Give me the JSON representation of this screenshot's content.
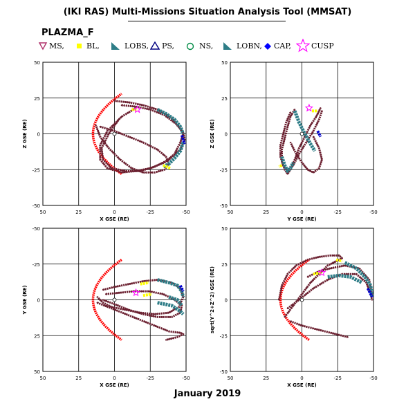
{
  "header": {
    "title": "(IKI RAS) Multi-Missions Situation Analysis Tool (MMSAT)",
    "mission": "PLAZMA_F",
    "date": "January 2019"
  },
  "legend": [
    {
      "symbol": "triangle-down",
      "label": "MS,",
      "color": "#b0306a"
    },
    {
      "symbol": "square",
      "label": "BL,",
      "color": "#ffff00"
    },
    {
      "symbol": "wedge",
      "label": "LOBS,",
      "color": "#2e7d87"
    },
    {
      "symbol": "triangle-up",
      "label": "PS,",
      "color": "#000080"
    },
    {
      "symbol": "circle",
      "label": "NS,",
      "color": "#008b45"
    },
    {
      "symbol": "wedge",
      "label": "LOBN,",
      "color": "#2e7d87"
    },
    {
      "symbol": "square",
      "label": "CAP,",
      "color": "#0000ff"
    },
    {
      "symbol": "star",
      "label": "CUSP",
      "color": "#ff00ff"
    }
  ],
  "colors": {
    "orbit": "#6b2030",
    "lobe": "#2e7d87",
    "boundary_layer": "#ffff00",
    "cap": "#0000cc",
    "bow_shock": "#ff0000",
    "cusp": "#ff00ff"
  },
  "chart_data": [
    {
      "type": "scatter",
      "xlabel": "X GSE (RE)",
      "ylabel": "Z GSE (RE)",
      "xlim": [
        50,
        -50
      ],
      "ylim": [
        -50,
        50
      ],
      "xticks": [
        "50",
        "25",
        "0",
        "-25",
        "-50"
      ],
      "yticks": [
        "-50",
        "-25",
        "0",
        "25",
        "50"
      ],
      "grid": true,
      "bow_shock": {
        "nose_x": 15,
        "extent": 28,
        "flare": 5
      },
      "orbits": [
        {
          "x": [
            0,
            -10,
            -20,
            -30,
            -40,
            -45,
            -48,
            -46,
            -42,
            -35,
            -25,
            -15,
            -5,
            5,
            10,
            10,
            5,
            -5,
            -15
          ],
          "y": [
            23,
            22,
            20,
            17,
            11,
            5,
            0,
            -6,
            -14,
            -20,
            -24,
            -26,
            -27,
            -24,
            -18,
            -8,
            2,
            12,
            18
          ]
        },
        {
          "x": [
            -5,
            -15,
            -25,
            -35,
            -43,
            -48,
            -49,
            -46,
            -38,
            -28,
            -18,
            -8,
            2,
            8,
            9,
            4,
            -3
          ],
          "y": [
            20,
            19,
            17,
            13,
            7,
            1,
            -4,
            -11,
            -18,
            -23,
            -26,
            -26,
            -24,
            -18,
            -10,
            0,
            10
          ]
        },
        {
          "x": [
            10,
            0,
            -10,
            -20,
            -30,
            -36,
            -38,
            -35,
            -28,
            -20,
            -12,
            -4,
            4,
            10,
            13
          ],
          "y": [
            5,
            2,
            -2,
            -6,
            -11,
            -16,
            -21,
            -25,
            -27,
            -27,
            -24,
            -18,
            -10,
            -2,
            6
          ]
        }
      ],
      "segments": [
        {
          "phase": "LOB",
          "x": [
            -30,
            -36,
            -42,
            -46,
            -48
          ],
          "y": [
            17,
            14,
            10,
            5,
            0
          ]
        },
        {
          "phase": "LOB",
          "x": [
            -48,
            -46,
            -42,
            -38,
            -34
          ],
          "y": [
            -6,
            -12,
            -17,
            -21,
            -23
          ]
        },
        {
          "phase": "BL",
          "x": [
            -12,
            -16
          ],
          "y": [
            17,
            17
          ]
        },
        {
          "phase": "BL",
          "x": [
            -34,
            -39
          ],
          "y": [
            -22,
            -24
          ]
        },
        {
          "phase": "CAP",
          "x": [
            -47,
            -48,
            -49
          ],
          "y": [
            -1,
            -4,
            -7
          ]
        }
      ],
      "cusp": [
        {
          "x": -16,
          "y": 17
        }
      ]
    },
    {
      "type": "scatter",
      "xlabel": "Y GSE (RE)",
      "ylabel": "Z GSE (RE)",
      "xlim": [
        50,
        -50
      ],
      "ylim": [
        -50,
        50
      ],
      "xticks": [
        "50",
        "25",
        "0",
        "-25",
        "-50"
      ],
      "yticks": [
        "-50",
        "-25",
        "0",
        "25",
        "50"
      ],
      "grid": true,
      "orbits": [
        {
          "x": [
            5,
            8,
            10,
            12,
            14,
            14,
            12,
            10,
            8,
            5,
            2,
            -2,
            -6,
            -10,
            -12,
            -13
          ],
          "y": [
            17,
            12,
            5,
            -3,
            -11,
            -19,
            -25,
            -28,
            -25,
            -18,
            -10,
            -2,
            6,
            12,
            16,
            18
          ]
        },
        {
          "x": [
            8,
            11,
            13,
            15,
            15,
            13,
            10,
            6,
            2,
            -3,
            -8,
            -12,
            -14
          ],
          "y": [
            15,
            8,
            0,
            -8,
            -16,
            -22,
            -26,
            -22,
            -14,
            -6,
            2,
            10,
            16
          ]
        },
        {
          "x": [
            -8,
            -12,
            -14,
            -12,
            -8,
            -4,
            0,
            4,
            8
          ],
          "y": [
            -2,
            -10,
            -18,
            -24,
            -27,
            -25,
            -20,
            -14,
            -6
          ]
        }
      ],
      "segments": [
        {
          "phase": "LOB",
          "x": [
            5,
            2,
            -2,
            -6,
            -9
          ],
          "y": [
            16,
            8,
            0,
            -7,
            -12
          ]
        },
        {
          "phase": "LOB",
          "x": [
            14,
            12,
            10,
            8,
            6
          ],
          "y": [
            -16,
            -22,
            -26,
            -24,
            -20
          ]
        },
        {
          "phase": "BL",
          "x": [
            -7,
            -11
          ],
          "y": [
            16,
            16
          ]
        },
        {
          "phase": "BL",
          "x": [
            14,
            16
          ],
          "y": [
            -22,
            -23
          ]
        },
        {
          "phase": "CAP",
          "x": [
            -11,
            -12,
            -13
          ],
          "y": [
            2,
            0,
            -2
          ]
        }
      ],
      "cusp": [
        {
          "x": -5,
          "y": 18
        }
      ]
    },
    {
      "type": "scatter",
      "xlabel": "X GSE (RE)",
      "ylabel": "Y GSE (RE)",
      "xlim": [
        50,
        -50
      ],
      "ylim": [
        50,
        -50
      ],
      "xticks": [
        "50",
        "25",
        "0",
        "-25",
        "-50"
      ],
      "yticks": [
        "50",
        "25",
        "0",
        "-25",
        "-50"
      ],
      "grid": true,
      "bow_shock": {
        "nose_x": 15,
        "extent": 28,
        "flare": 5
      },
      "orbits": [
        {
          "x": [
            8,
            0,
            -10,
            -20,
            -30,
            -40,
            -46,
            -48,
            -45,
            -38,
            -28,
            -18,
            -8,
            2,
            8,
            12
          ],
          "y": [
            -7,
            -9,
            -11,
            -13,
            -14,
            -12,
            -8,
            -2,
            5,
            9,
            10,
            9,
            7,
            5,
            2,
            -2
          ]
        },
        {
          "x": [
            6,
            -4,
            -14,
            -24,
            -34,
            -42,
            -47,
            -46,
            -40,
            -30,
            -20,
            -10,
            0,
            8
          ],
          "y": [
            -4,
            -5,
            -6,
            -6,
            -4,
            0,
            4,
            9,
            12,
            12,
            10,
            7,
            3,
            0
          ]
        },
        {
          "x": [
            12,
            2,
            -8,
            -18,
            -28,
            -38,
            -46,
            -48,
            -44,
            -36
          ],
          "y": [
            2,
            6,
            10,
            14,
            18,
            22,
            23,
            24,
            26,
            28
          ]
        }
      ],
      "segments": [
        {
          "phase": "LOB",
          "x": [
            -30,
            -38,
            -44,
            -47,
            -48
          ],
          "y": [
            -14,
            -12,
            -10,
            -6,
            -2
          ]
        },
        {
          "phase": "LOB",
          "x": [
            -30,
            -40,
            -46,
            -48
          ],
          "y": [
            2,
            4,
            8,
            10
          ]
        },
        {
          "phase": "LOB",
          "x": [
            -38,
            -44,
            -47
          ],
          "y": [
            -2,
            0,
            4
          ]
        },
        {
          "phase": "BL",
          "x": [
            -18,
            -24
          ],
          "y": [
            -11,
            -12
          ]
        },
        {
          "phase": "BL",
          "x": [
            -20,
            -26
          ],
          "y": [
            -3,
            -4
          ]
        },
        {
          "phase": "CAP",
          "x": [
            -46,
            -47,
            -48
          ],
          "y": [
            -10,
            -8,
            -6
          ]
        }
      ],
      "cusp": [
        {
          "x": -15,
          "y": -5
        }
      ]
    },
    {
      "type": "scatter",
      "xlabel": "X GSE (RE)",
      "ylabel": "sqrt(Y^2+Z^2) GSE (RE)",
      "xlim": [
        50,
        -50
      ],
      "ylim": [
        -50,
        50
      ],
      "xticks": [
        "50",
        "25",
        "0",
        "-25",
        "-50"
      ],
      "yticks": [
        "-50",
        "-25",
        "0",
        "25",
        "50"
      ],
      "grid": true,
      "bow_shock": {
        "nose_x": 15,
        "extent": 28,
        "flare": 5
      },
      "orbits": [
        {
          "x": [
            12,
            6,
            0,
            -6,
            -12,
            -18,
            -24,
            -28,
            -26,
            -20,
            -12,
            -4,
            4,
            10,
            14,
            16
          ],
          "y": [
            -12,
            -4,
            4,
            12,
            18,
            24,
            27,
            29,
            31,
            31,
            30,
            28,
            24,
            18,
            10,
            0
          ]
        },
        {
          "x": [
            10,
            2,
            -8,
            -18,
            -28,
            -38,
            -45,
            -48,
            -49
          ],
          "y": [
            -6,
            0,
            8,
            14,
            18,
            18,
            12,
            4,
            0
          ]
        },
        {
          "x": [
            -4,
            -12,
            -20,
            -30,
            -40,
            -47,
            -49
          ],
          "y": [
            16,
            20,
            22,
            24,
            22,
            14,
            4
          ]
        },
        {
          "x": [
            8,
            0,
            -8,
            -16,
            -24,
            -32
          ],
          "y": [
            -15,
            -18,
            -20,
            -22,
            -24,
            -26
          ]
        }
      ],
      "segments": [
        {
          "phase": "LOB",
          "x": [
            -30,
            -38,
            -44,
            -48,
            -49
          ],
          "y": [
            26,
            22,
            16,
            10,
            2
          ]
        },
        {
          "phase": "LOB",
          "x": [
            -18,
            -26,
            -34,
            -42
          ],
          "y": [
            16,
            17,
            16,
            12
          ]
        },
        {
          "phase": "BL",
          "x": [
            -24,
            -28
          ],
          "y": [
            28,
            27
          ]
        },
        {
          "phase": "BL",
          "x": [
            -8,
            -14
          ],
          "y": [
            18,
            19
          ]
        },
        {
          "phase": "CAP",
          "x": [
            -46,
            -48,
            -49
          ],
          "y": [
            8,
            4,
            2
          ]
        }
      ],
      "cusp": [
        {
          "x": -14,
          "y": 19
        }
      ]
    }
  ]
}
